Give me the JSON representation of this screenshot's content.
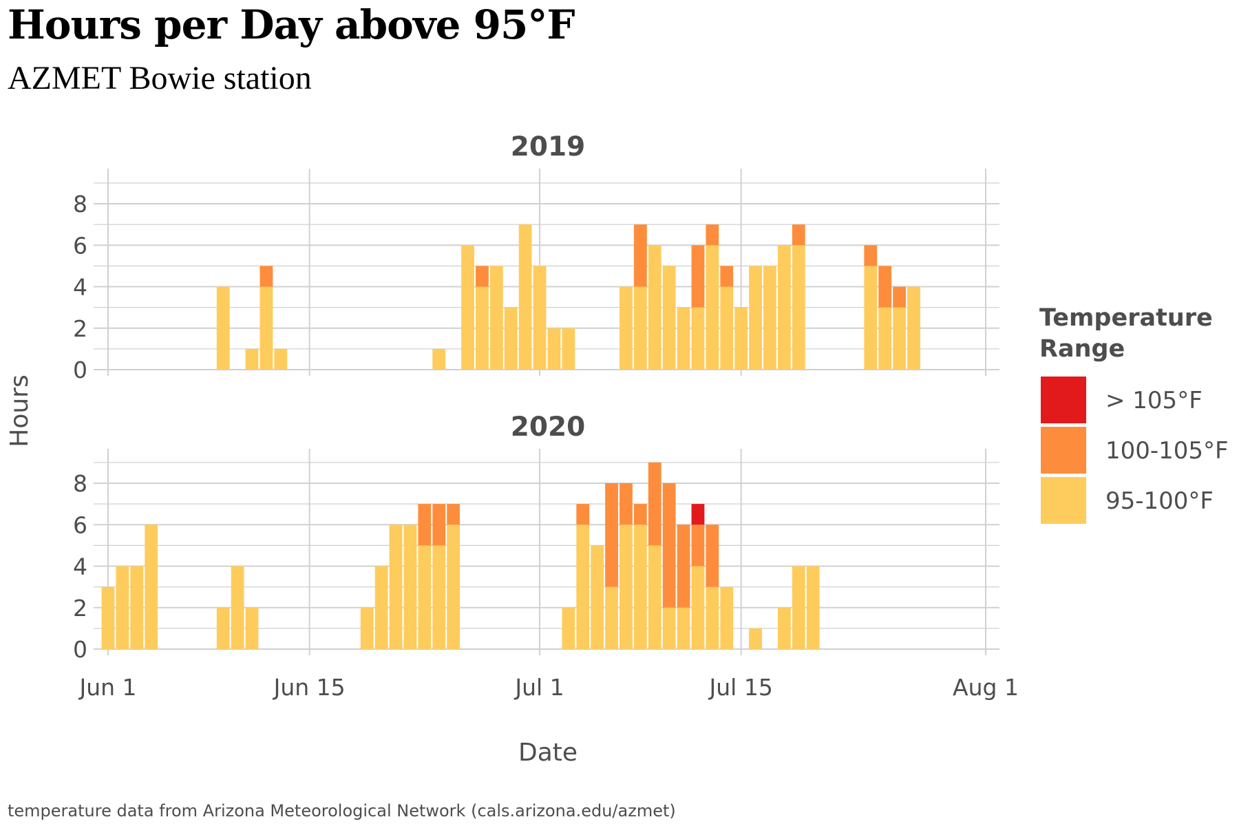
{
  "title": "Hours per Day above 95°F",
  "subtitle": "AZMET Bowie station",
  "caption": "temperature data from Arizona Meteorological Network (cals.arizona.edu/azmet)",
  "chart_data": {
    "type": "bar",
    "stacked": true,
    "xlabel": "Date",
    "ylabel": "Hours",
    "x_ticks": [
      "Jun 1",
      "Jun 15",
      "Jul 1",
      "Jul 15",
      "Aug 1"
    ],
    "y_ticks": [
      "0",
      "2",
      "4",
      "6",
      "8"
    ],
    "ylim": [
      0,
      9
    ],
    "grid": true,
    "legend": {
      "title": "Temperature Range",
      "position": "right",
      "entries": [
        {
          "label": "> 105°F",
          "color": "#e31a1c"
        },
        {
          "label": "100-105°F",
          "color": "#fd8d3c"
        },
        {
          "label": "95-100°F",
          "color": "#fecc5c"
        }
      ]
    },
    "series_order": [
      "95-100°F",
      "100-105°F",
      "> 105°F"
    ],
    "panels": [
      {
        "label": "2019",
        "days": [
          {
            "date": "Jun 9",
            "values": [
              4,
              0,
              0
            ]
          },
          {
            "date": "Jun 11",
            "values": [
              1,
              0,
              0
            ]
          },
          {
            "date": "Jun 12",
            "values": [
              4,
              1,
              0
            ]
          },
          {
            "date": "Jun 13",
            "values": [
              1,
              0,
              0
            ]
          },
          {
            "date": "Jun 24",
            "values": [
              1,
              0,
              0
            ]
          },
          {
            "date": "Jun 26",
            "values": [
              6,
              0,
              0
            ]
          },
          {
            "date": "Jun 27",
            "values": [
              4,
              1,
              0
            ]
          },
          {
            "date": "Jun 28",
            "values": [
              5,
              0,
              0
            ]
          },
          {
            "date": "Jun 29",
            "values": [
              3,
              0,
              0
            ]
          },
          {
            "date": "Jun 30",
            "values": [
              7,
              0,
              0
            ]
          },
          {
            "date": "Jul 1",
            "values": [
              5,
              0,
              0
            ]
          },
          {
            "date": "Jul 2",
            "values": [
              2,
              0,
              0
            ]
          },
          {
            "date": "Jul 3",
            "values": [
              2,
              0,
              0
            ]
          },
          {
            "date": "Jul 7",
            "values": [
              4,
              0,
              0
            ]
          },
          {
            "date": "Jul 8",
            "values": [
              4,
              3,
              0
            ]
          },
          {
            "date": "Jul 9",
            "values": [
              6,
              0,
              0
            ]
          },
          {
            "date": "Jul 10",
            "values": [
              5,
              0,
              0
            ]
          },
          {
            "date": "Jul 11",
            "values": [
              3,
              0,
              0
            ]
          },
          {
            "date": "Jul 12",
            "values": [
              3,
              3,
              0
            ]
          },
          {
            "date": "Jul 13",
            "values": [
              6,
              1,
              0
            ]
          },
          {
            "date": "Jul 14",
            "values": [
              4,
              1,
              0
            ]
          },
          {
            "date": "Jul 15",
            "values": [
              3,
              0,
              0
            ]
          },
          {
            "date": "Jul 16",
            "values": [
              5,
              0,
              0
            ]
          },
          {
            "date": "Jul 17",
            "values": [
              5,
              0,
              0
            ]
          },
          {
            "date": "Jul 18",
            "values": [
              6,
              0,
              0
            ]
          },
          {
            "date": "Jul 19",
            "values": [
              6,
              1,
              0
            ]
          },
          {
            "date": "Jul 24",
            "values": [
              5,
              1,
              0
            ]
          },
          {
            "date": "Jul 25",
            "values": [
              3,
              2,
              0
            ]
          },
          {
            "date": "Jul 26",
            "values": [
              3,
              1,
              0
            ]
          },
          {
            "date": "Jul 27",
            "values": [
              4,
              0,
              0
            ]
          }
        ]
      },
      {
        "label": "2020",
        "days": [
          {
            "date": "Jun 1",
            "values": [
              3,
              0,
              0
            ]
          },
          {
            "date": "Jun 2",
            "values": [
              4,
              0,
              0
            ]
          },
          {
            "date": "Jun 3",
            "values": [
              4,
              0,
              0
            ]
          },
          {
            "date": "Jun 4",
            "values": [
              6,
              0,
              0
            ]
          },
          {
            "date": "Jun 9",
            "values": [
              2,
              0,
              0
            ]
          },
          {
            "date": "Jun 10",
            "values": [
              4,
              0,
              0
            ]
          },
          {
            "date": "Jun 11",
            "values": [
              2,
              0,
              0
            ]
          },
          {
            "date": "Jun 19",
            "values": [
              2,
              0,
              0
            ]
          },
          {
            "date": "Jun 20",
            "values": [
              4,
              0,
              0
            ]
          },
          {
            "date": "Jun 21",
            "values": [
              6,
              0,
              0
            ]
          },
          {
            "date": "Jun 22",
            "values": [
              6,
              0,
              0
            ]
          },
          {
            "date": "Jun 23",
            "values": [
              5,
              2,
              0
            ]
          },
          {
            "date": "Jun 24",
            "values": [
              5,
              2,
              0
            ]
          },
          {
            "date": "Jun 25",
            "values": [
              6,
              1,
              0
            ]
          },
          {
            "date": "Jul 3",
            "values": [
              2,
              0,
              0
            ]
          },
          {
            "date": "Jul 4",
            "values": [
              6,
              1,
              0
            ]
          },
          {
            "date": "Jul 5",
            "values": [
              5,
              0,
              0
            ]
          },
          {
            "date": "Jul 6",
            "values": [
              3,
              5,
              0
            ]
          },
          {
            "date": "Jul 7",
            "values": [
              6,
              2,
              0
            ]
          },
          {
            "date": "Jul 8",
            "values": [
              6,
              1,
              0
            ]
          },
          {
            "date": "Jul 9",
            "values": [
              5,
              4,
              0
            ]
          },
          {
            "date": "Jul 10",
            "values": [
              2,
              6,
              0
            ]
          },
          {
            "date": "Jul 11",
            "values": [
              2,
              4,
              0
            ]
          },
          {
            "date": "Jul 12",
            "values": [
              4,
              2,
              1
            ]
          },
          {
            "date": "Jul 13",
            "values": [
              3,
              3,
              0
            ]
          },
          {
            "date": "Jul 14",
            "values": [
              3,
              0,
              0
            ]
          },
          {
            "date": "Jul 16",
            "values": [
              1,
              0,
              0
            ]
          },
          {
            "date": "Jul 18",
            "values": [
              2,
              0,
              0
            ]
          },
          {
            "date": "Jul 19",
            "values": [
              4,
              0,
              0
            ]
          },
          {
            "date": "Jul 20",
            "values": [
              4,
              0,
              0
            ]
          }
        ]
      }
    ]
  }
}
